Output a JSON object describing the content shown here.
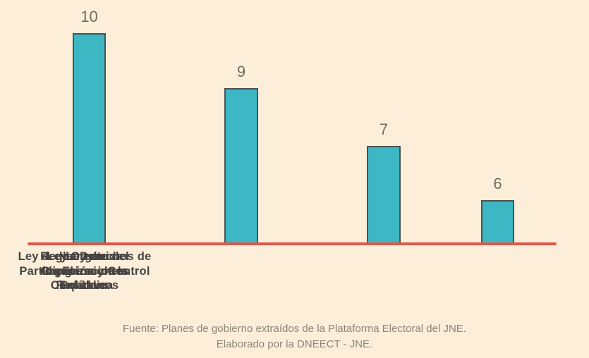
{
  "chart_data": {
    "type": "bar",
    "title": "",
    "xlabel": "",
    "ylabel": "",
    "grid": false,
    "legend": "none",
    "value_labels_shown": true,
    "categories": [
      "Reglamento del Congreso de la República",
      "Ley de los Derechos de Participación y Control Ciudadanos",
      "Ley Orgánica de Elecciones",
      "Ley de Organizaciones Políticas"
    ],
    "values": [
      10,
      9,
      7,
      6
    ],
    "bars": [
      {
        "label": "Reglamento del\nCongreso de la\nRepública",
        "value": "10"
      },
      {
        "label": "Ley de los Derechos de\nParticipación y Control\nCiudadanos",
        "value": "9"
      },
      {
        "label": "Ley Orgánica\nde Elecciones",
        "value": "7"
      },
      {
        "label": "Ley de\nOrganizaciones\nPolíticas",
        "value": "6"
      }
    ],
    "colors": {
      "bar_fill": "#3eb7c4",
      "bar_border": "#4a5254",
      "axis_line": "#e0584a",
      "background": "#fdeeda",
      "value_label_text": "#6f6b64",
      "category_label_text": "#454341",
      "source_text": "#8d8478"
    }
  },
  "source": {
    "line1": "Fuente: Planes de gobierno extraídos de la Plataforma Electoral del JNE.",
    "line2": "Elaborado por la DNEECT - JNE."
  }
}
